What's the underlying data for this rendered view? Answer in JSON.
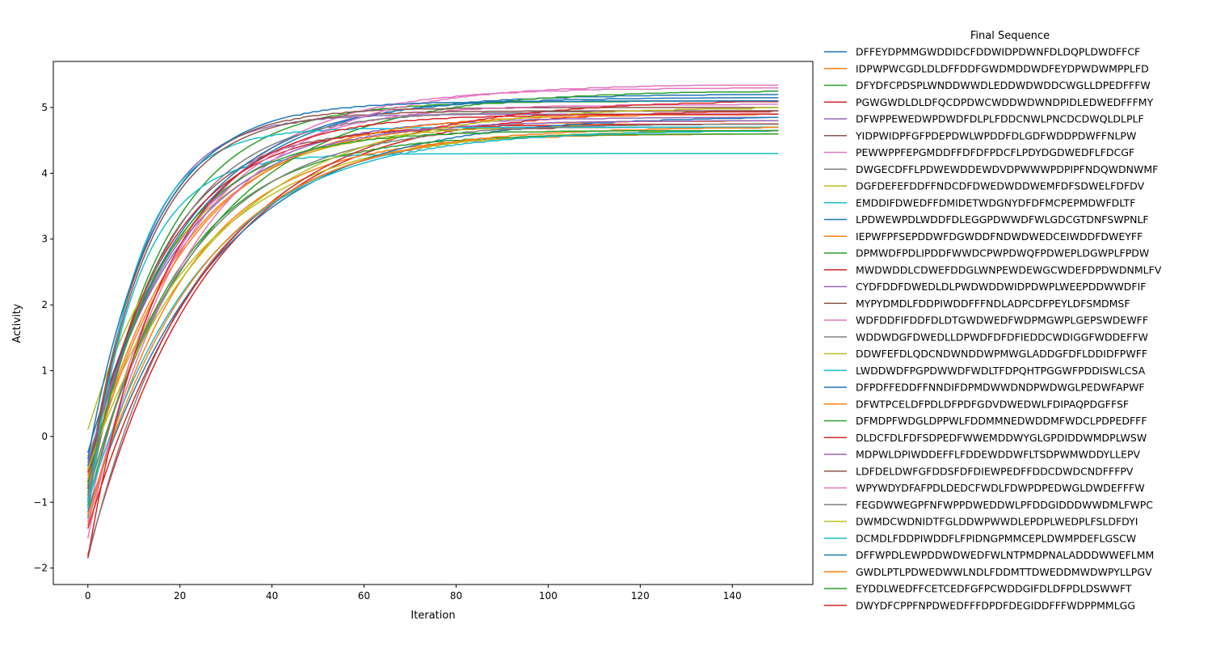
{
  "chart_data": {
    "type": "line",
    "title": "",
    "xlabel": "Iteration",
    "ylabel": "Activity",
    "xlim": [
      -7.5,
      157.5
    ],
    "ylim": [
      -2.25,
      5.7
    ],
    "x_ticks": [
      0,
      20,
      40,
      60,
      80,
      100,
      120,
      140
    ],
    "y_ticks": [
      -2,
      -1,
      0,
      1,
      2,
      3,
      4,
      5
    ],
    "x_tick_labels": [
      "0",
      "20",
      "40",
      "60",
      "80",
      "100",
      "120",
      "140"
    ],
    "y_tick_labels": [
      "−2",
      "−1",
      "0",
      "1",
      "2",
      "3",
      "4",
      "5"
    ],
    "grid": false,
    "legend_title": "Final Sequence",
    "legend_placement": "outside-right",
    "x_range": [
      0,
      150
    ],
    "series": [
      {
        "name": "DFFEYDPMMGWDDIDCFDDWIDPDWNFDLDQPLDWDFFCF",
        "color": "#1f77b4",
        "start": -0.25,
        "end": 5.2
      },
      {
        "name": "IDPWPWCGDLDLDFFDDFGWDMDDWDFEYDPWDWMPPLFD",
        "color": "#ff7f0e",
        "start": -0.6,
        "end": 4.8
      },
      {
        "name": "DFYDFCPDSPLWNDDWWDLEDDWDWDDCWGLLDPEDFFFW",
        "color": "#2ca02c",
        "start": -0.9,
        "end": 5.1
      },
      {
        "name": "PGWGWDLDLDFQCDPDWCWDDWDWNDPIDLEDWEDFFFMY",
        "color": "#d62728",
        "start": -1.8,
        "end": 4.95
      },
      {
        "name": "DFWPPEWEDWPDWDFDLPLFDDCNWLPNCDCDWQLDLPLF",
        "color": "#9467bd",
        "start": -0.5,
        "end": 4.85
      },
      {
        "name": "YIDPWIDPFGFPDEPDWLWPDDFDLGDFWDDPDWFFNLPW",
        "color": "#8c564b",
        "start": -1.0,
        "end": 4.7
      },
      {
        "name": "PEWWPPFEPGMDDFFDFDFPDCFLPDYDGDWEDFLFDCGF",
        "color": "#e377c2",
        "start": -1.2,
        "end": 5.3
      },
      {
        "name": "DWGECDFFLPDWEWDDEWDVDPWWWPDPIPFNDQWDNWMF",
        "color": "#7f7f7f",
        "start": -1.85,
        "end": 4.65
      },
      {
        "name": "DGFDEFEFDDFFNDCDFDWEDWDDWEMFDFSDWELFDFDV",
        "color": "#bcbd22",
        "start": 0.1,
        "end": 4.75
      },
      {
        "name": "EMDDIFDWEDFFDMIDETWDGNYDFDFMCPEPMDWFDLTF",
        "color": "#17becf",
        "start": -1.1,
        "end": 4.3
      },
      {
        "name": "LPDWEWPDLWDDFDLEGGPDWWDFWLGDCGTDNFSWPNLF",
        "color": "#1f77b4",
        "start": -0.45,
        "end": 5.15
      },
      {
        "name": "IEPWFPFSEPDDWFDGWDDFNDWDWEDCEIWDDFDWEYFF",
        "color": "#ff7f0e",
        "start": -1.35,
        "end": 4.6
      },
      {
        "name": "DPMWDFPDLIPDDFWWDCPWPDWQFPDWEPLDGWPLFPDW",
        "color": "#2ca02c",
        "start": -0.85,
        "end": 5.25
      },
      {
        "name": "MWDWDDLCDWEFDDGLWNPEWDEWGCWDEFDPDWDNMLFV",
        "color": "#d62728",
        "start": -0.55,
        "end": 4.75
      },
      {
        "name": "CYDFDDFDWEDLDLPWDWDDWIDPDWPLWEEPDDWWDFIF",
        "color": "#9467bd",
        "start": -1.0,
        "end": 4.9
      },
      {
        "name": "MYPYDMDLFDDPIWDDFFFNDLADPCDFPEYLDFSMDMSF",
        "color": "#8c564b",
        "start": -0.7,
        "end": 5.0
      },
      {
        "name": "WDFDDFIFDDFDLDTGWDWEDFWDPMGWPLGEPSWDEWFF",
        "color": "#e377c2",
        "start": -1.55,
        "end": 5.05
      },
      {
        "name": "WDDWDGFDWEDLLDPWDFDFDFIEDDCWDIGGFWDDEFFW",
        "color": "#7f7f7f",
        "start": -0.95,
        "end": 4.95
      },
      {
        "name": "DDWFEFDLQDCNDWNDDWPMWGLADDGFDFLDDIDFPWFF",
        "color": "#bcbd22",
        "start": -0.3,
        "end": 4.65
      },
      {
        "name": "LWDDWDFPGPDWWDFWDLTFDPQHTPGGWFPDDISWLCSA",
        "color": "#17becf",
        "start": -1.25,
        "end": 4.7
      },
      {
        "name": "DFPDFFEDDFFNNDIFDPMDWWDNDPWDWGLPEDWFAPWF",
        "color": "#1f77b4",
        "start": -1.15,
        "end": 4.85
      },
      {
        "name": "DFWTPCELDFPDLDFPDFGDVDWEDWLFDIPAQPDGFFSF",
        "color": "#ff7f0e",
        "start": -0.65,
        "end": 4.9
      },
      {
        "name": "DFMDPFWDGLDPPWLFDDMMNEDWDDMFWDCLPDPEDFFF",
        "color": "#2ca02c",
        "start": -1.05,
        "end": 4.6
      },
      {
        "name": "DLDCFDLFDFSDPEDFWWEMDDWYGLGPDIDDWMDPLWSW",
        "color": "#d62728",
        "start": -1.4,
        "end": 5.1
      },
      {
        "name": "MDPWLDPIWDDEFFLFDDEWDDWFLTSDPWMWDDYLLEPV",
        "color": "#9467bd",
        "start": -0.4,
        "end": 4.8
      },
      {
        "name": "LDFDELDWFGFDDSFDFDIEWPEDFFDDCDWDCNDFFFPV",
        "color": "#8c564b",
        "start": -0.8,
        "end": 4.95
      },
      {
        "name": "WPYWDYDFAFPDLDEDCFWDLFDWPDPEDWGLDWDEFFFW",
        "color": "#e377c2",
        "start": -1.3,
        "end": 5.35
      },
      {
        "name": "FEGDWWEGPFNFWPPDWEDDWLPFDDGIDDDWWDMLFWPC",
        "color": "#7f7f7f",
        "start": -0.9,
        "end": 4.75
      },
      {
        "name": "DWMDCWDNIDTFGLDDWPWWDLEPDPLWEDPLFSLDFDYI",
        "color": "#bcbd22",
        "start": -0.5,
        "end": 5.0
      },
      {
        "name": "DCMDLFDDPIWDDFLFPIDNGPMMCEPLDWMPDEFLGSCW",
        "color": "#17becf",
        "start": -1.0,
        "end": 4.65
      },
      {
        "name": "DFFWPDLEWPDDWDWEDFWLNTPMDPNALADDDWWEFLMM",
        "color": "#1f77b4",
        "start": -0.35,
        "end": 5.1
      },
      {
        "name": "GWDLPTLPDWEDWWLNDLFDDMTTDWEDDMWDWPYLLPGV",
        "color": "#ff7f0e",
        "start": -1.2,
        "end": 4.7
      },
      {
        "name": "EYDDLWEDFFCETCEDFGFPCWDDGIFDLDFPDLDSWWFT",
        "color": "#2ca02c",
        "start": -0.75,
        "end": 4.65
      },
      {
        "name": "DWYDFCPPFNPDWEDFFFDPDFDEGIDDFFFWDPPMMLGG",
        "color": "#d62728",
        "start": -1.85,
        "end": 4.9
      }
    ]
  }
}
